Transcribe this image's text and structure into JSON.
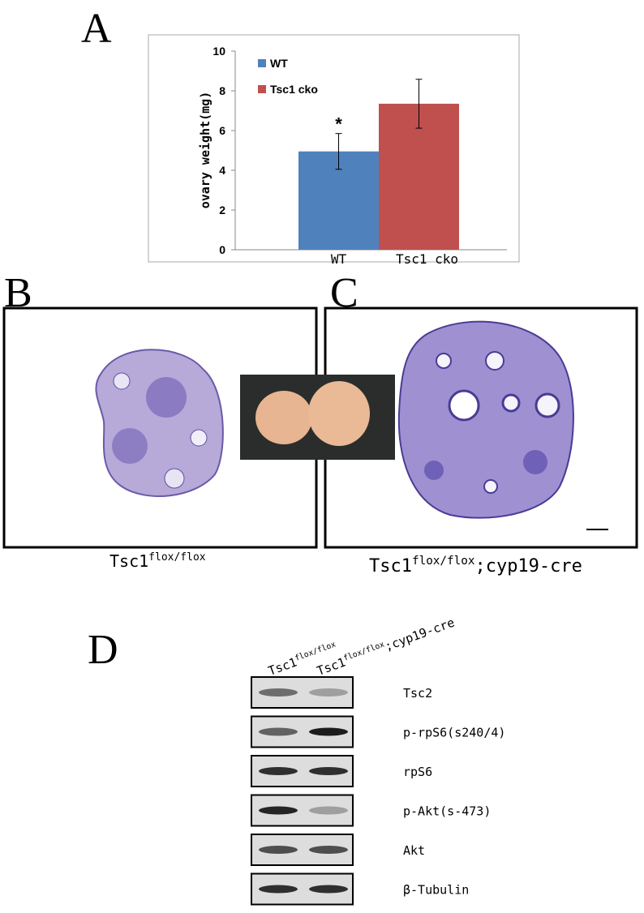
{
  "panels": {
    "a": "A",
    "b": "B",
    "c": "C",
    "d": "D"
  },
  "chart_data": {
    "type": "bar",
    "y_label": "ovary weight(mg)",
    "categories": [
      "WT",
      "Tsc1 cko"
    ],
    "series": [
      {
        "name": "WT",
        "color": "#4f81bd",
        "values": [
          4.95,
          null
        ],
        "errors": [
          0.9,
          null
        ]
      },
      {
        "name": "Tsc1 cko",
        "color": "#c0504d",
        "values": [
          null,
          7.35
        ],
        "errors": [
          null,
          1.23
        ]
      }
    ],
    "annotation": "*",
    "ylim": [
      0,
      10
    ],
    "yticks": [
      0,
      2,
      4,
      6,
      8,
      10
    ],
    "grid": false,
    "legend": "upper left"
  },
  "captions": {
    "b": {
      "base": "Tsc1",
      "sup": "flox/flox"
    },
    "c": {
      "base": "Tsc1",
      "sup": "flox/flox",
      "suffix": ";cyp19-cre"
    }
  },
  "blot": {
    "columns": [
      {
        "base": "Tsc1",
        "sup": "flox/flox"
      },
      {
        "base": "Tsc1",
        "sup": "flox/flox",
        "suffix": ";cyp19-cre"
      }
    ],
    "rows": [
      "Tsc2",
      "p-rpS6(s240/4)",
      "rpS6",
      "p-Akt(s-473)",
      "Akt",
      "β-Tubulin"
    ]
  }
}
